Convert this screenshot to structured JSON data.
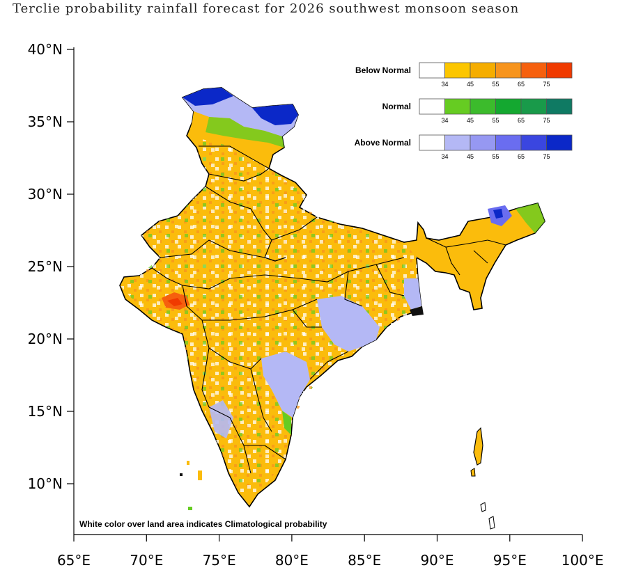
{
  "title": "Terclie probability rainfall forecast for 2026 southwest monsoon  season",
  "axes": {
    "lat_labels": [
      "40°N",
      "35°N",
      "30°N",
      "25°N",
      "20°N",
      "15°N",
      "10°N"
    ],
    "lon_labels": [
      "65°E",
      "70°E",
      "75°E",
      "80°E",
      "85°E",
      "90°E",
      "95°E",
      "100°E"
    ],
    "lon_range": [
      65,
      100
    ],
    "lat_range": [
      6.5,
      40
    ]
  },
  "legend": {
    "ticks": [
      "34",
      "45",
      "55",
      "65",
      "75"
    ],
    "categories": [
      {
        "name": "Below Normal",
        "colors": [
          "#ffffff",
          "#fcc600",
          "#f5ad00",
          "#f7941d",
          "#f6600e",
          "#f03a00"
        ]
      },
      {
        "name": "Normal",
        "colors": [
          "#ffffff",
          "#66cc22",
          "#3cbb2c",
          "#14a830",
          "#199a4a",
          "#0f7a63"
        ]
      },
      {
        "name": "Above Normal",
        "colors": [
          "#ffffff",
          "#b4b8f5",
          "#9698f2",
          "#6a6df0",
          "#3a46e0",
          "#0b28c8"
        ]
      }
    ]
  },
  "note": "White color over land area indicates Climatological probability",
  "colors": {
    "land_fill": "#fbbc0c",
    "boundary": "#000000"
  }
}
